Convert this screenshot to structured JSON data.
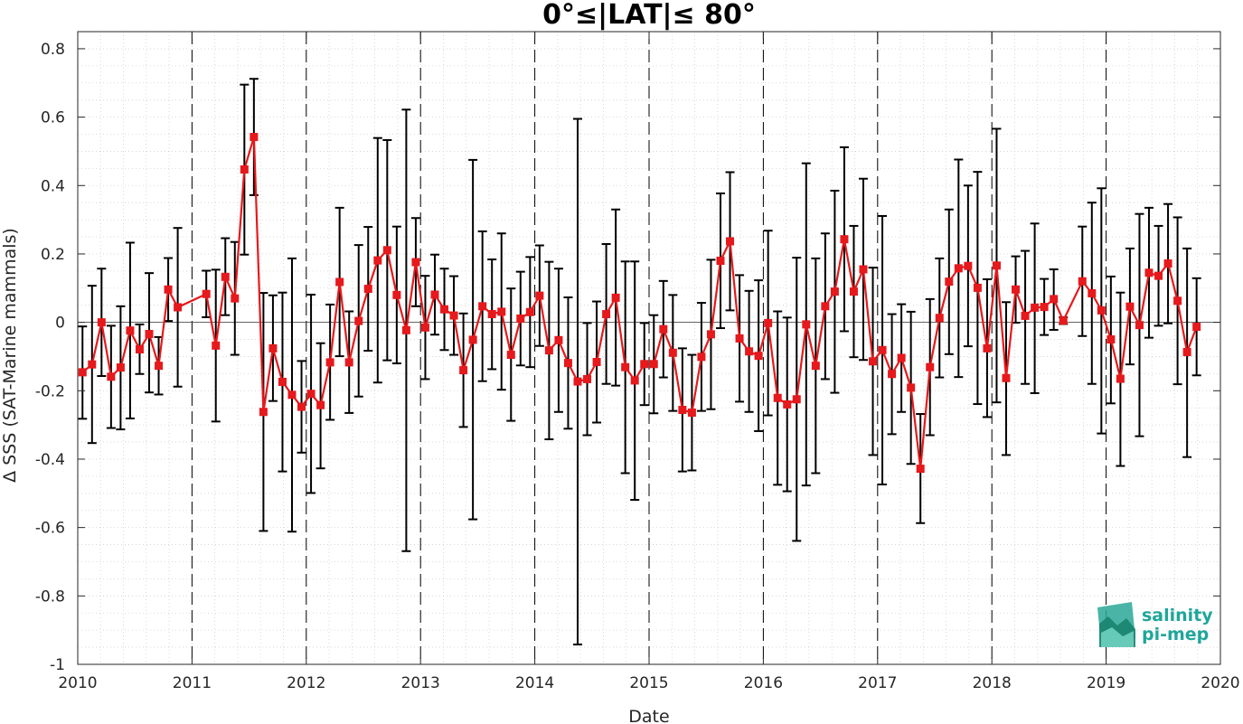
{
  "chart_data": {
    "type": "line",
    "title": "0°≤|LAT|≤ 80°",
    "xlabel": "Date",
    "ylabel": "Δ SSS (SAT-Marine mammals)",
    "xlim": [
      2010,
      2020
    ],
    "ylim": [
      -1,
      0.85
    ],
    "x_ticks": [
      "2010",
      "2011",
      "2012",
      "2013",
      "2014",
      "2015",
      "2016",
      "2017",
      "2018",
      "2019",
      "2020"
    ],
    "y_ticks": [
      "0.8",
      "0.6",
      "0.4",
      "0.2",
      "0",
      "-0.2",
      "-0.4",
      "-0.6",
      "-0.8",
      "-1"
    ],
    "year_dividers": [
      2011,
      2012,
      2013,
      2014,
      2015,
      2016,
      2017,
      2018,
      2019
    ],
    "zero_line": 0,
    "grid": "dotted minor",
    "series": [
      {
        "color": "#e6191c",
        "marker": "square",
        "errorbar_color": "#000000",
        "points": [
          {
            "x": "2010-01",
            "y": -0.146,
            "lo": -0.282,
            "hi": -0.012
          },
          {
            "x": "2010-02",
            "y": -0.123,
            "lo": -0.353,
            "hi": 0.107
          },
          {
            "x": "2010-03",
            "y": 0.0,
            "lo": -0.157,
            "hi": 0.157
          },
          {
            "x": "2010-04",
            "y": -0.159,
            "lo": -0.309,
            "hi": -0.01
          },
          {
            "x": "2010-05",
            "y": -0.132,
            "lo": -0.313,
            "hi": 0.047
          },
          {
            "x": "2010-06",
            "y": -0.024,
            "lo": -0.281,
            "hi": 0.233
          },
          {
            "x": "2010-07",
            "y": -0.079,
            "lo": -0.151,
            "hi": -0.006
          },
          {
            "x": "2010-08",
            "y": -0.034,
            "lo": -0.205,
            "hi": 0.144
          },
          {
            "x": "2010-09",
            "y": -0.127,
            "lo": -0.211,
            "hi": -0.043
          },
          {
            "x": "2010-10",
            "y": 0.096,
            "lo": 0.004,
            "hi": 0.188
          },
          {
            "x": "2010-11",
            "y": 0.044,
            "lo": -0.188,
            "hi": 0.276
          },
          {
            "x": "2011-02",
            "y": 0.083,
            "lo": 0.015,
            "hi": 0.151
          },
          {
            "x": "2011-03",
            "y": -0.068,
            "lo": -0.29,
            "hi": 0.154
          },
          {
            "x": "2011-04",
            "y": 0.133,
            "lo": 0.021,
            "hi": 0.246
          },
          {
            "x": "2011-05",
            "y": 0.07,
            "lo": -0.095,
            "hi": 0.235
          },
          {
            "x": "2011-06",
            "y": 0.447,
            "lo": 0.198,
            "hi": 0.695
          },
          {
            "x": "2011-07",
            "y": 0.542,
            "lo": 0.372,
            "hi": 0.712
          },
          {
            "x": "2011-08",
            "y": -0.262,
            "lo": -0.61,
            "hi": 0.086
          },
          {
            "x": "2011-09",
            "y": -0.076,
            "lo": -0.23,
            "hi": 0.079
          },
          {
            "x": "2011-10",
            "y": -0.174,
            "lo": -0.436,
            "hi": 0.087
          },
          {
            "x": "2011-11",
            "y": -0.212,
            "lo": -0.612,
            "hi": 0.187
          },
          {
            "x": "2011-12",
            "y": -0.247,
            "lo": -0.381,
            "hi": -0.113
          },
          {
            "x": "2012-01",
            "y": -0.209,
            "lo": -0.499,
            "hi": 0.081
          },
          {
            "x": "2012-02",
            "y": -0.242,
            "lo": -0.427,
            "hi": -0.061
          },
          {
            "x": "2012-03",
            "y": -0.117,
            "lo": -0.285,
            "hi": 0.052
          },
          {
            "x": "2012-04",
            "y": 0.118,
            "lo": -0.099,
            "hi": 0.335
          },
          {
            "x": "2012-05",
            "y": -0.117,
            "lo": -0.265,
            "hi": 0.032
          },
          {
            "x": "2012-06",
            "y": 0.004,
            "lo": -0.217,
            "hi": 0.226
          },
          {
            "x": "2012-07",
            "y": 0.098,
            "lo": -0.083,
            "hi": 0.279
          },
          {
            "x": "2012-08",
            "y": 0.181,
            "lo": -0.176,
            "hi": 0.539
          },
          {
            "x": "2012-09",
            "y": 0.211,
            "lo": -0.111,
            "hi": 0.533
          },
          {
            "x": "2012-10",
            "y": 0.08,
            "lo": -0.12,
            "hi": 0.28
          },
          {
            "x": "2012-11",
            "y": -0.023,
            "lo": -0.669,
            "hi": 0.622
          },
          {
            "x": "2012-12",
            "y": 0.176,
            "lo": 0.047,
            "hi": 0.305
          },
          {
            "x": "2013-01",
            "y": -0.015,
            "lo": -0.166,
            "hi": 0.136
          },
          {
            "x": "2013-02",
            "y": 0.081,
            "lo": -0.036,
            "hi": 0.198
          },
          {
            "x": "2013-03",
            "y": 0.038,
            "lo": -0.081,
            "hi": 0.157
          },
          {
            "x": "2013-04",
            "y": 0.02,
            "lo": -0.095,
            "hi": 0.135
          },
          {
            "x": "2013-05",
            "y": -0.14,
            "lo": -0.306,
            "hi": 0.026
          },
          {
            "x": "2013-06",
            "y": -0.051,
            "lo": -0.576,
            "hi": 0.475
          },
          {
            "x": "2013-07",
            "y": 0.047,
            "lo": -0.172,
            "hi": 0.266
          },
          {
            "x": "2013-08",
            "y": 0.024,
            "lo": -0.137,
            "hi": 0.184
          },
          {
            "x": "2013-09",
            "y": 0.031,
            "lo": -0.197,
            "hi": 0.26
          },
          {
            "x": "2013-10",
            "y": -0.095,
            "lo": -0.288,
            "hi": 0.099
          },
          {
            "x": "2013-11",
            "y": 0.011,
            "lo": -0.126,
            "hi": 0.148
          },
          {
            "x": "2013-12",
            "y": 0.03,
            "lo": -0.131,
            "hi": 0.191
          },
          {
            "x": "2014-01",
            "y": 0.078,
            "lo": -0.069,
            "hi": 0.225
          },
          {
            "x": "2014-02",
            "y": -0.082,
            "lo": -0.342,
            "hi": 0.177
          },
          {
            "x": "2014-03",
            "y": -0.052,
            "lo": -0.262,
            "hi": 0.157
          },
          {
            "x": "2014-04",
            "y": -0.119,
            "lo": -0.311,
            "hi": 0.073
          },
          {
            "x": "2014-05",
            "y": -0.173,
            "lo": -0.942,
            "hi": 0.595
          },
          {
            "x": "2014-06",
            "y": -0.166,
            "lo": -0.33,
            "hi": -0.002
          },
          {
            "x": "2014-07",
            "y": -0.116,
            "lo": -0.293,
            "hi": 0.061
          },
          {
            "x": "2014-08",
            "y": 0.024,
            "lo": -0.18,
            "hi": 0.229
          },
          {
            "x": "2014-09",
            "y": 0.072,
            "lo": -0.185,
            "hi": 0.33
          },
          {
            "x": "2014-10",
            "y": -0.131,
            "lo": -0.441,
            "hi": 0.178
          },
          {
            "x": "2014-11",
            "y": -0.17,
            "lo": -0.519,
            "hi": 0.178
          },
          {
            "x": "2014-12",
            "y": -0.122,
            "lo": -0.242,
            "hi": -0.002
          },
          {
            "x": "2015-01",
            "y": -0.122,
            "lo": -0.266,
            "hi": 0.021
          },
          {
            "x": "2015-02",
            "y": -0.02,
            "lo": -0.161,
            "hi": 0.121
          },
          {
            "x": "2015-03",
            "y": -0.089,
            "lo": -0.259,
            "hi": 0.08
          },
          {
            "x": "2015-04",
            "y": -0.256,
            "lo": -0.436,
            "hi": -0.076
          },
          {
            "x": "2015-05",
            "y": -0.264,
            "lo": -0.433,
            "hi": -0.095
          },
          {
            "x": "2015-06",
            "y": -0.101,
            "lo": -0.259,
            "hi": 0.057
          },
          {
            "x": "2015-07",
            "y": -0.035,
            "lo": -0.254,
            "hi": 0.183
          },
          {
            "x": "2015-08",
            "y": 0.18,
            "lo": -0.017,
            "hi": 0.377
          },
          {
            "x": "2015-09",
            "y": 0.237,
            "lo": 0.035,
            "hi": 0.439
          },
          {
            "x": "2015-10",
            "y": -0.047,
            "lo": -0.232,
            "hi": 0.138
          },
          {
            "x": "2015-11",
            "y": -0.085,
            "lo": -0.262,
            "hi": 0.092
          },
          {
            "x": "2015-12",
            "y": -0.098,
            "lo": -0.318,
            "hi": 0.123
          },
          {
            "x": "2016-01",
            "y": -0.002,
            "lo": -0.272,
            "hi": 0.268
          },
          {
            "x": "2016-02",
            "y": -0.221,
            "lo": -0.475,
            "hi": 0.032
          },
          {
            "x": "2016-03",
            "y": -0.24,
            "lo": -0.494,
            "hi": 0.014
          },
          {
            "x": "2016-04",
            "y": -0.225,
            "lo": -0.639,
            "hi": 0.189
          },
          {
            "x": "2016-05",
            "y": -0.006,
            "lo": -0.477,
            "hi": 0.465
          },
          {
            "x": "2016-06",
            "y": -0.127,
            "lo": -0.441,
            "hi": 0.187
          },
          {
            "x": "2016-07",
            "y": 0.047,
            "lo": -0.166,
            "hi": 0.26
          },
          {
            "x": "2016-08",
            "y": 0.09,
            "lo": -0.206,
            "hi": 0.385
          },
          {
            "x": "2016-09",
            "y": 0.243,
            "lo": -0.026,
            "hi": 0.512
          },
          {
            "x": "2016-10",
            "y": 0.09,
            "lo": -0.102,
            "hi": 0.282
          },
          {
            "x": "2016-11",
            "y": 0.155,
            "lo": -0.11,
            "hi": 0.42
          },
          {
            "x": "2016-12",
            "y": -0.114,
            "lo": -0.388,
            "hi": 0.16
          },
          {
            "x": "2017-01",
            "y": -0.081,
            "lo": -0.474,
            "hi": 0.311
          },
          {
            "x": "2017-02",
            "y": -0.151,
            "lo": -0.327,
            "hi": 0.024
          },
          {
            "x": "2017-03",
            "y": -0.104,
            "lo": -0.262,
            "hi": 0.053
          },
          {
            "x": "2017-04",
            "y": -0.191,
            "lo": -0.414,
            "hi": 0.031
          },
          {
            "x": "2017-05",
            "y": -0.428,
            "lo": -0.587,
            "hi": -0.268
          },
          {
            "x": "2017-06",
            "y": -0.131,
            "lo": -0.33,
            "hi": 0.068
          },
          {
            "x": "2017-07",
            "y": 0.013,
            "lo": -0.161,
            "hi": 0.187
          },
          {
            "x": "2017-08",
            "y": 0.119,
            "lo": -0.093,
            "hi": 0.33
          },
          {
            "x": "2017-09",
            "y": 0.158,
            "lo": -0.16,
            "hi": 0.476
          },
          {
            "x": "2017-10",
            "y": 0.165,
            "lo": -0.07,
            "hi": 0.4
          },
          {
            "x": "2017-11",
            "y": 0.101,
            "lo": -0.239,
            "hi": 0.44
          },
          {
            "x": "2017-12",
            "y": -0.076,
            "lo": -0.277,
            "hi": 0.126
          },
          {
            "x": "2018-01",
            "y": 0.166,
            "lo": -0.234,
            "hi": 0.566
          },
          {
            "x": "2018-02",
            "y": -0.163,
            "lo": -0.388,
            "hi": 0.059
          },
          {
            "x": "2018-03",
            "y": 0.096,
            "lo": -0.001,
            "hi": 0.193
          },
          {
            "x": "2018-04",
            "y": 0.019,
            "lo": -0.18,
            "hi": 0.209
          },
          {
            "x": "2018-05",
            "y": 0.043,
            "lo": -0.207,
            "hi": 0.289
          },
          {
            "x": "2018-06",
            "y": 0.045,
            "lo": -0.037,
            "hi": 0.127
          },
          {
            "x": "2018-07",
            "y": 0.068,
            "lo": -0.022,
            "hi": 0.155
          },
          {
            "x": "2018-08",
            "y": 0.005,
            "lo": -0.005,
            "hi": 0.015
          },
          {
            "x": "2018-10",
            "y": 0.12,
            "lo": -0.04,
            "hi": 0.28
          },
          {
            "x": "2018-11",
            "y": 0.085,
            "lo": -0.18,
            "hi": 0.35
          },
          {
            "x": "2018-12",
            "y": 0.035,
            "lo": -0.325,
            "hi": 0.392
          },
          {
            "x": "2019-01",
            "y": -0.05,
            "lo": -0.237,
            "hi": 0.134
          },
          {
            "x": "2019-02",
            "y": -0.165,
            "lo": -0.42,
            "hi": 0.087
          },
          {
            "x": "2019-03",
            "y": 0.046,
            "lo": -0.123,
            "hi": 0.216
          },
          {
            "x": "2019-04",
            "y": -0.008,
            "lo": -0.333,
            "hi": 0.317
          },
          {
            "x": "2019-05",
            "y": 0.145,
            "lo": -0.045,
            "hi": 0.335
          },
          {
            "x": "2019-06",
            "y": 0.136,
            "lo": -0.01,
            "hi": 0.282
          },
          {
            "x": "2019-07",
            "y": 0.172,
            "lo": -0.003,
            "hi": 0.346
          },
          {
            "x": "2019-08",
            "y": 0.063,
            "lo": -0.181,
            "hi": 0.307
          },
          {
            "x": "2019-09",
            "y": -0.087,
            "lo": -0.394,
            "hi": 0.216
          },
          {
            "x": "2019-10",
            "y": -0.013,
            "lo": -0.155,
            "hi": 0.129
          }
        ]
      }
    ]
  },
  "logo": {
    "line1": "salinity",
    "line2": "pi-mep",
    "color": "#1fa69a"
  }
}
